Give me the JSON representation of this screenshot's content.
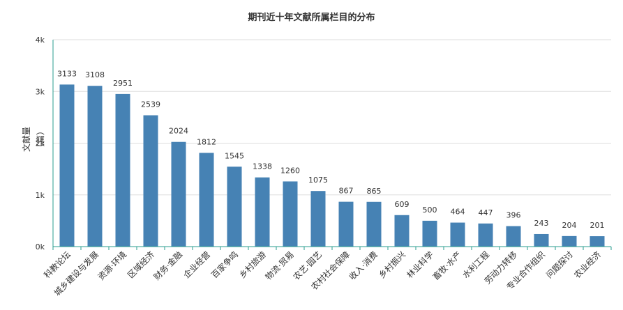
{
  "chart_data": {
    "type": "bar",
    "title": "期刊近十年文献所属栏目的分布",
    "xlabel": "",
    "ylabel": "文献量（篇）",
    "ylim": [
      0,
      4000
    ],
    "yticks": [
      0,
      1000,
      2000,
      3000,
      4000
    ],
    "ytick_labels": [
      "0k",
      "1k",
      "2k",
      "3k",
      "4k"
    ],
    "grid": true,
    "bar_color": "#4682b4",
    "categories": [
      "科教论坛",
      "城乡建设与发展",
      "资源·环境",
      "区域经济",
      "财务·金融",
      "企业经营",
      "百家争鸣",
      "乡村旅游",
      "物流·贸易",
      "农艺·园艺",
      "农村社会保障",
      "收入·消费",
      "乡村振兴",
      "林业科学",
      "畜牧·水产",
      "水利工程",
      "劳动力转移",
      "专业合作组织",
      "问题探讨",
      "农业经济"
    ],
    "values": [
      3133,
      3108,
      2951,
      2539,
      2024,
      1812,
      1545,
      1338,
      1260,
      1075,
      867,
      865,
      609,
      500,
      464,
      447,
      396,
      243,
      204,
      201
    ]
  }
}
